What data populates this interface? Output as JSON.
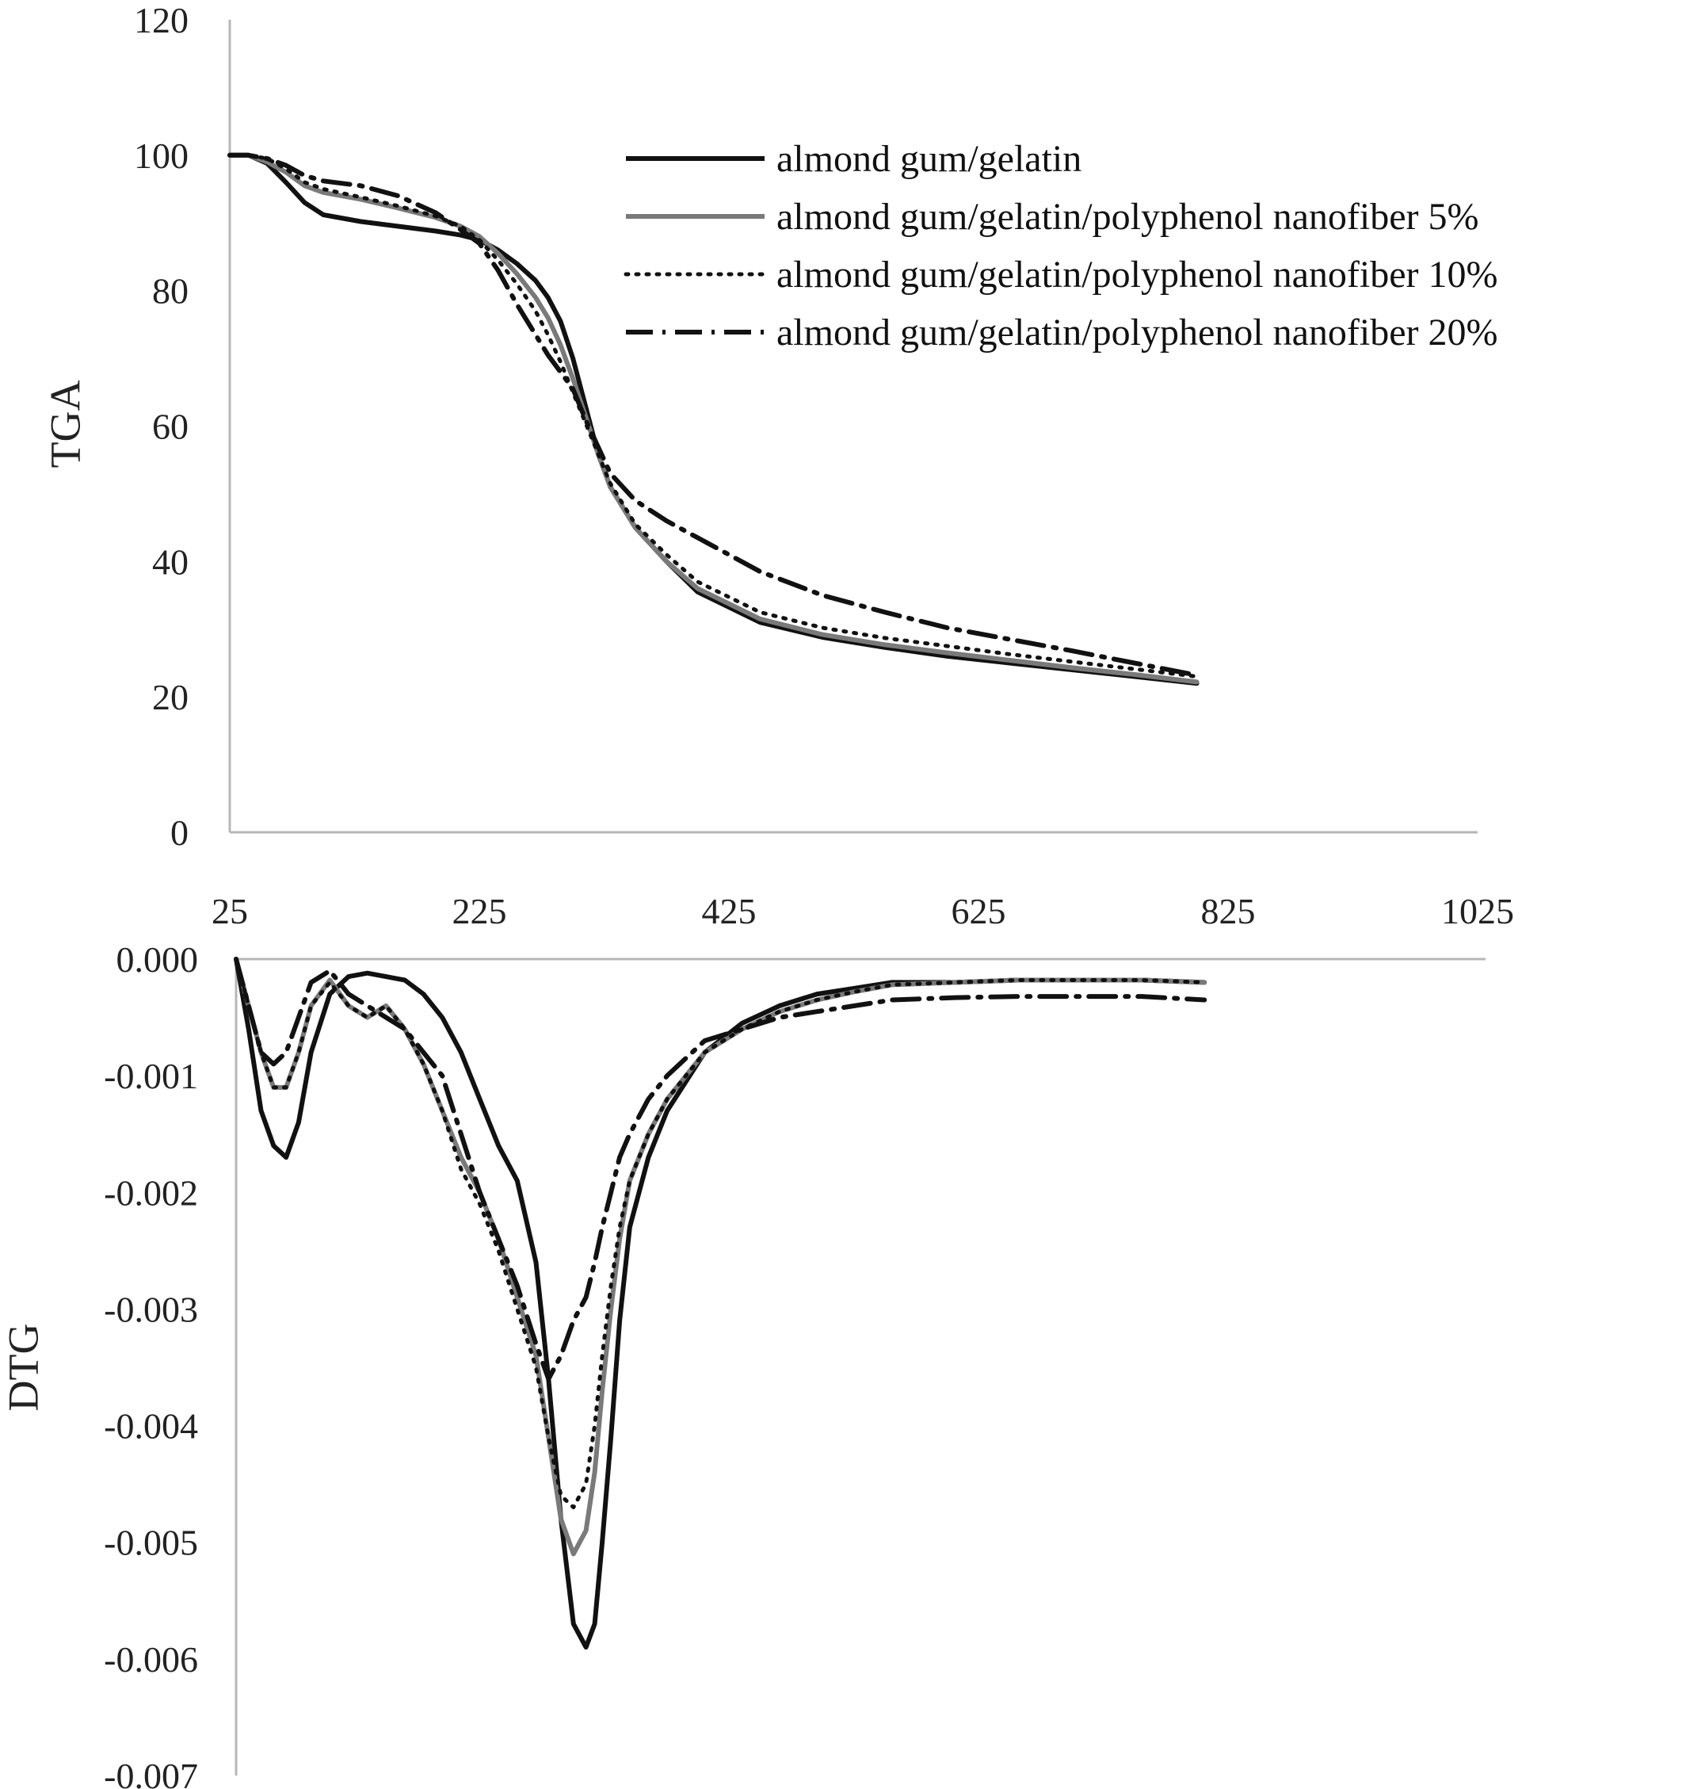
{
  "chart_data": [
    {
      "type": "line",
      "ylabel": "TGA",
      "xlabel": "",
      "title": "",
      "xlim": [
        25,
        1025
      ],
      "ylim": [
        0,
        120
      ],
      "xticks": [
        "25",
        "225",
        "425",
        "625",
        "825",
        "1025"
      ],
      "yticks": [
        "0",
        "20",
        "40",
        "60",
        "80",
        "100",
        "120"
      ],
      "grid": false,
      "legend_position": "top-right",
      "series": [
        {
          "name": "almond gum/gelatin",
          "color": "#111111",
          "dash": "solid",
          "x": [
            25,
            40,
            55,
            70,
            85,
            100,
            130,
            160,
            190,
            210,
            225,
            240,
            255,
            270,
            280,
            290,
            300,
            310,
            320,
            330,
            350,
            375,
            400,
            450,
            500,
            550,
            600,
            650,
            700,
            750,
            800
          ],
          "y": [
            100,
            100,
            98.8,
            96,
            93,
            91.2,
            90.2,
            89.5,
            88.8,
            88.2,
            87.5,
            86,
            84,
            81.5,
            79,
            75.5,
            70,
            63,
            56,
            51,
            45,
            40,
            35.5,
            31,
            28.8,
            27.3,
            26,
            25,
            24,
            23,
            22
          ]
        },
        {
          "name": "almond gum/gelatin/polyphenol nanofiber 5%",
          "color": "#7a7a7a",
          "dash": "solid",
          "x": [
            25,
            40,
            55,
            70,
            85,
            100,
            130,
            160,
            190,
            210,
            225,
            240,
            255,
            270,
            280,
            290,
            300,
            310,
            320,
            330,
            350,
            375,
            400,
            450,
            500,
            550,
            600,
            650,
            700,
            750,
            800
          ],
          "y": [
            100,
            100,
            99,
            97.5,
            95.5,
            94.5,
            93.5,
            92.2,
            90.8,
            89.5,
            88,
            85.5,
            82.5,
            79,
            76,
            72,
            67,
            61.5,
            56,
            51,
            45,
            40,
            36,
            31.5,
            29.2,
            27.7,
            26.5,
            25.4,
            24.3,
            23.3,
            22.2
          ]
        },
        {
          "name": "almond gum/gelatin/polyphenol nanofiber 10%",
          "color": "#111111",
          "dash": "dotted",
          "x": [
            25,
            40,
            55,
            70,
            85,
            100,
            130,
            160,
            190,
            210,
            225,
            240,
            255,
            270,
            280,
            290,
            300,
            310,
            320,
            330,
            350,
            375,
            400,
            450,
            500,
            550,
            600,
            650,
            700,
            750,
            800
          ],
          "y": [
            100,
            100,
            99.5,
            98,
            96,
            95,
            93.8,
            92.5,
            91,
            89.5,
            87.5,
            84.5,
            81,
            77,
            73.5,
            69.5,
            65,
            60.5,
            56,
            51.5,
            45.5,
            41,
            37,
            32.5,
            30.2,
            28.7,
            27.5,
            26.3,
            25.2,
            24.1,
            23
          ]
        },
        {
          "name": "almond gum/gelatin/polyphenol nanofiber 20%",
          "color": "#111111",
          "dash": "dashdot",
          "x": [
            25,
            40,
            55,
            70,
            85,
            100,
            130,
            160,
            190,
            210,
            225,
            240,
            255,
            270,
            280,
            290,
            300,
            310,
            320,
            330,
            350,
            375,
            400,
            450,
            500,
            550,
            600,
            650,
            700,
            750,
            800
          ],
          "y": [
            100,
            100,
            99.5,
            98.5,
            97,
            96.2,
            95.5,
            94,
            91.5,
            89,
            87,
            83,
            78,
            73.5,
            70.5,
            68,
            65.5,
            61,
            57,
            53,
            49,
            46,
            43.5,
            38.5,
            35,
            32.5,
            30.2,
            28.5,
            26.8,
            25,
            23.2
          ]
        }
      ]
    },
    {
      "type": "line",
      "ylabel": "DTG",
      "xlabel": "",
      "title": "",
      "xlim": [
        25,
        1025
      ],
      "ylim": [
        -0.007,
        0
      ],
      "yticks": [
        "0.000",
        "-0.001",
        "-0.002",
        "-0.003",
        "-0.004",
        "-0.005",
        "-0.006",
        "-0.007"
      ],
      "grid": false,
      "series": [
        {
          "name": "almond gum/gelatin",
          "color": "#111111",
          "dash": "solid",
          "x": [
            25,
            35,
            45,
            55,
            65,
            75,
            85,
            100,
            115,
            130,
            145,
            160,
            175,
            190,
            205,
            220,
            235,
            250,
            265,
            275,
            285,
            295,
            305,
            312,
            318,
            325,
            332,
            340,
            355,
            370,
            400,
            430,
            460,
            490,
            520,
            550,
            600,
            650,
            700,
            750,
            800
          ],
          "y": [
            0,
            -0.0006,
            -0.0013,
            -0.0016,
            -0.0017,
            -0.0014,
            -0.0008,
            -0.0003,
            -0.00015,
            -0.00012,
            -0.00015,
            -0.00018,
            -0.0003,
            -0.0005,
            -0.0008,
            -0.0012,
            -0.0016,
            -0.0019,
            -0.0026,
            -0.0036,
            -0.0048,
            -0.0057,
            -0.0059,
            -0.0057,
            -0.005,
            -0.0041,
            -0.0031,
            -0.0023,
            -0.0017,
            -0.0013,
            -0.0008,
            -0.00055,
            -0.0004,
            -0.0003,
            -0.00025,
            -0.0002,
            -0.0002,
            -0.00018,
            -0.00018,
            -0.00018,
            -0.0002
          ]
        },
        {
          "name": "almond gum/gelatin/polyphenol nanofiber 5%",
          "color": "#7a7a7a",
          "dash": "solid",
          "x": [
            25,
            35,
            45,
            55,
            65,
            75,
            85,
            100,
            115,
            130,
            145,
            160,
            175,
            190,
            205,
            220,
            235,
            250,
            265,
            275,
            285,
            295,
            305,
            312,
            318,
            325,
            332,
            340,
            355,
            370,
            400,
            430,
            460,
            490,
            520,
            550,
            600,
            650,
            700,
            750,
            800
          ],
          "y": [
            0,
            -0.0004,
            -0.0008,
            -0.0011,
            -0.0011,
            -0.0008,
            -0.0004,
            -0.00018,
            -0.0004,
            -0.0005,
            -0.0004,
            -0.0006,
            -0.0009,
            -0.0013,
            -0.0017,
            -0.002,
            -0.0024,
            -0.0029,
            -0.0034,
            -0.0041,
            -0.0048,
            -0.0051,
            -0.0049,
            -0.0044,
            -0.0037,
            -0.003,
            -0.0024,
            -0.0019,
            -0.0015,
            -0.0012,
            -0.0008,
            -0.0006,
            -0.00045,
            -0.00035,
            -0.00028,
            -0.00022,
            -0.0002,
            -0.00018,
            -0.00018,
            -0.00018,
            -0.0002
          ]
        },
        {
          "name": "almond gum/gelatin/polyphenol nanofiber 10%",
          "color": "#111111",
          "dash": "dotted",
          "x": [
            25,
            35,
            45,
            55,
            65,
            75,
            85,
            100,
            115,
            130,
            145,
            160,
            175,
            190,
            205,
            220,
            235,
            250,
            265,
            275,
            285,
            295,
            305,
            312,
            318,
            325,
            332,
            340,
            355,
            370,
            400,
            430,
            460,
            490,
            520,
            550,
            600,
            650,
            700,
            750,
            800
          ],
          "y": [
            0,
            -0.0004,
            -0.0008,
            -0.0011,
            -0.0011,
            -0.0008,
            -0.0004,
            -0.0002,
            -0.0004,
            -0.0005,
            -0.0004,
            -0.0006,
            -0.0009,
            -0.0013,
            -0.0018,
            -0.0021,
            -0.0025,
            -0.003,
            -0.0035,
            -0.0041,
            -0.0046,
            -0.0047,
            -0.0045,
            -0.004,
            -0.0034,
            -0.0028,
            -0.0023,
            -0.0019,
            -0.0015,
            -0.0012,
            -0.0008,
            -0.0006,
            -0.00045,
            -0.00035,
            -0.00028,
            -0.00022,
            -0.0002,
            -0.00018,
            -0.00018,
            -0.00018,
            -0.0002
          ]
        },
        {
          "name": "almond gum/gelatin/polyphenol nanofiber 20%",
          "color": "#111111",
          "dash": "dashdot",
          "x": [
            25,
            35,
            45,
            55,
            65,
            75,
            85,
            100,
            115,
            130,
            145,
            160,
            175,
            190,
            205,
            220,
            235,
            250,
            265,
            275,
            285,
            295,
            305,
            312,
            318,
            325,
            332,
            340,
            355,
            370,
            400,
            430,
            460,
            490,
            520,
            550,
            600,
            650,
            700,
            750,
            800
          ],
          "y": [
            0,
            -0.0004,
            -0.0008,
            -0.0009,
            -0.0008,
            -0.0005,
            -0.0002,
            -0.0001,
            -0.0003,
            -0.0004,
            -0.0005,
            -0.0006,
            -0.0008,
            -0.001,
            -0.0015,
            -0.002,
            -0.0024,
            -0.0028,
            -0.0033,
            -0.0036,
            -0.0034,
            -0.0031,
            -0.0029,
            -0.0026,
            -0.0023,
            -0.002,
            -0.0017,
            -0.0015,
            -0.0012,
            -0.001,
            -0.0007,
            -0.0006,
            -0.0005,
            -0.00045,
            -0.0004,
            -0.00035,
            -0.00033,
            -0.00032,
            -0.00032,
            -0.00032,
            -0.00035
          ]
        }
      ]
    }
  ]
}
